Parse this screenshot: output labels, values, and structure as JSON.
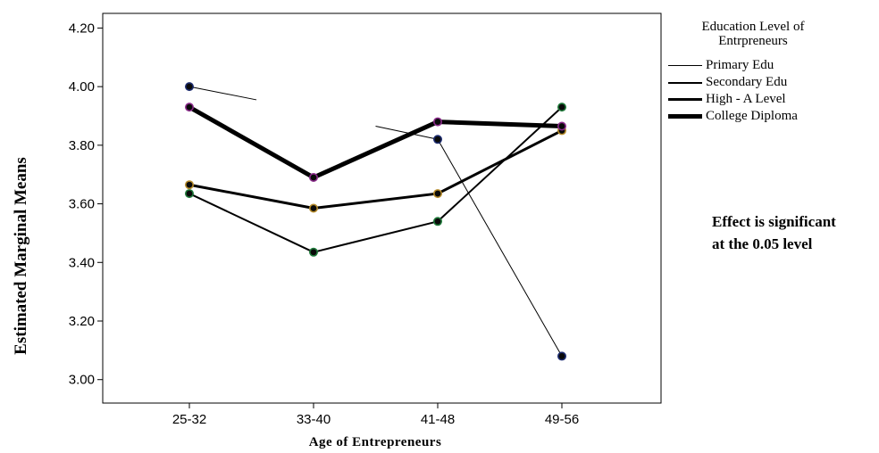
{
  "chart_data": {
    "type": "line",
    "xlabel": "Age of Entrepreneurs",
    "ylabel": "Estimated Marginal Means",
    "categories": [
      "25-32",
      "33-40",
      "41-48",
      "49-56"
    ],
    "ylim": [
      2.92,
      4.25
    ],
    "yticks": [
      3.0,
      3.2,
      3.4,
      3.6,
      3.8,
      4.0,
      4.2
    ],
    "legend_title": "Education Level of Entrpreneurs",
    "legend_position": "right",
    "grid": false,
    "annotation": "Effect is significant at the 0.05 level",
    "series": [
      {
        "name": "Primary Edu",
        "values": [
          4.0,
          null,
          3.82,
          3.08
        ],
        "marker_color": "#1c2b6e"
      },
      {
        "name": "Secondary Edu",
        "values": [
          3.635,
          3.435,
          3.54,
          3.93
        ],
        "marker_color": "#1f7a3a"
      },
      {
        "name": "High - A Level",
        "values": [
          3.665,
          3.585,
          3.635,
          3.85
        ],
        "marker_color": "#b58a2a"
      },
      {
        "name": "College Diploma",
        "values": [
          3.93,
          3.69,
          3.88,
          3.865
        ],
        "marker_color": "#8a2a8a"
      }
    ],
    "fragments": [
      {
        "series": "Primary Edu",
        "from": {
          "x": 0,
          "y": 4.0
        },
        "to": {
          "x": 0.54,
          "y": 3.955
        }
      },
      {
        "series": "Primary Edu",
        "from": {
          "x": 1.5,
          "y": 3.865
        },
        "to": {
          "x": 2,
          "y": 3.82
        }
      }
    ]
  },
  "legend": {
    "title": "Education Level of Entrpreneurs",
    "items": [
      {
        "label": "Primary Edu"
      },
      {
        "label": "Secondary Edu"
      },
      {
        "label": "High - A Level"
      },
      {
        "label": "College Diploma"
      }
    ]
  },
  "note": {
    "line1": "Effect is significant",
    "line2": "at the 0.05 level"
  },
  "axes": {
    "xlabel": "Age of Entrepreneurs",
    "ylabel": "Estimated Marginal Means"
  }
}
